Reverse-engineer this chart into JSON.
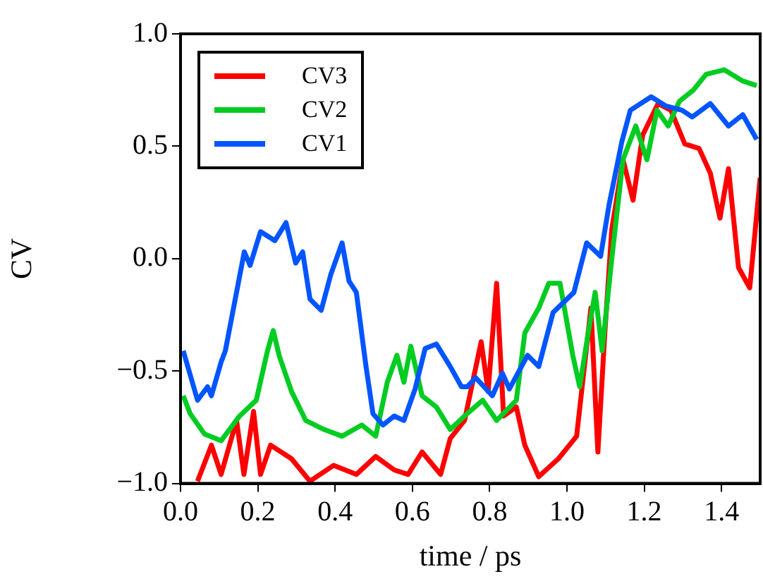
{
  "chart_data": {
    "type": "line",
    "xlabel": "time / ps",
    "ylabel": "CV",
    "xlim": [
      0,
      1.5
    ],
    "ylim": [
      -1,
      1
    ],
    "xticks": [
      {
        "value": 0,
        "label": "0.0"
      },
      {
        "value": 0.2,
        "label": "0.2"
      },
      {
        "value": 0.4,
        "label": "0.4"
      },
      {
        "value": 0.6,
        "label": "0.6"
      },
      {
        "value": 0.8,
        "label": "0.8"
      },
      {
        "value": 1,
        "label": "1.0"
      },
      {
        "value": 1.2,
        "label": "1.2"
      },
      {
        "value": 1.4,
        "label": "1.4"
      }
    ],
    "yticks": [
      {
        "value": -1,
        "label": "−1.0"
      },
      {
        "value": -0.5,
        "label": "−0.5"
      },
      {
        "value": 0,
        "label": "0.0"
      },
      {
        "value": 0.5,
        "label": "0.5"
      },
      {
        "value": 1,
        "label": "1.0"
      }
    ],
    "grid": false,
    "legend": "top left",
    "marker": "none",
    "line_style": "solid",
    "series": [
      {
        "name": "CV3",
        "color": "#ff0000",
        "x": [
          0.044,
          0.08,
          0.105,
          0.145,
          0.164,
          0.189,
          0.207,
          0.233,
          0.287,
          0.335,
          0.396,
          0.455,
          0.505,
          0.553,
          0.589,
          0.625,
          0.673,
          0.698,
          0.735,
          0.778,
          0.796,
          0.818,
          0.836,
          0.869,
          0.891,
          0.927,
          0.978,
          1.025,
          1.062,
          1.08,
          1.098,
          1.116,
          1.145,
          1.171,
          1.196,
          1.236,
          1.269,
          1.305,
          1.342,
          1.371,
          1.396,
          1.418,
          1.444,
          1.473,
          1.5
        ],
        "values": [
          -0.99,
          -0.83,
          -0.96,
          -0.72,
          -0.96,
          -0.68,
          -0.96,
          -0.83,
          -0.89,
          -0.99,
          -0.92,
          -0.96,
          -0.88,
          -0.94,
          -0.96,
          -0.86,
          -0.96,
          -0.8,
          -0.72,
          -0.37,
          -0.59,
          -0.11,
          -0.7,
          -0.66,
          -0.83,
          -0.97,
          -0.89,
          -0.79,
          -0.22,
          -0.86,
          -0.33,
          0.13,
          0.44,
          0.26,
          0.55,
          0.69,
          0.66,
          0.51,
          0.49,
          0.38,
          0.18,
          0.4,
          -0.04,
          -0.13,
          0.36
        ]
      },
      {
        "name": "CV2",
        "color": "#00cc22",
        "x": [
          0.007,
          0.025,
          0.062,
          0.105,
          0.153,
          0.196,
          0.225,
          0.24,
          0.255,
          0.287,
          0.324,
          0.371,
          0.418,
          0.469,
          0.505,
          0.535,
          0.56,
          0.578,
          0.596,
          0.625,
          0.662,
          0.698,
          0.735,
          0.782,
          0.818,
          0.869,
          0.891,
          0.927,
          0.953,
          0.982,
          1.015,
          1.033,
          1.055,
          1.073,
          1.091,
          1.116,
          1.145,
          1.178,
          1.207,
          1.233,
          1.262,
          1.291,
          1.327,
          1.36,
          1.407,
          1.455,
          1.491
        ],
        "values": [
          -0.61,
          -0.69,
          -0.78,
          -0.81,
          -0.7,
          -0.63,
          -0.41,
          -0.32,
          -0.43,
          -0.59,
          -0.72,
          -0.76,
          -0.79,
          -0.74,
          -0.79,
          -0.55,
          -0.43,
          -0.55,
          -0.39,
          -0.61,
          -0.66,
          -0.76,
          -0.7,
          -0.63,
          -0.72,
          -0.63,
          -0.33,
          -0.22,
          -0.11,
          -0.11,
          -0.43,
          -0.57,
          -0.33,
          -0.15,
          -0.41,
          0,
          0.44,
          0.59,
          0.44,
          0.66,
          0.59,
          0.7,
          0.75,
          0.82,
          0.84,
          0.79,
          0.77
        ]
      },
      {
        "name": "CV1",
        "color": "#0055ff",
        "x": [
          0.007,
          0.044,
          0.07,
          0.08,
          0.105,
          0.116,
          0.165,
          0.18,
          0.207,
          0.244,
          0.273,
          0.298,
          0.316,
          0.335,
          0.364,
          0.389,
          0.418,
          0.436,
          0.455,
          0.48,
          0.498,
          0.524,
          0.553,
          0.578,
          0.607,
          0.633,
          0.662,
          0.698,
          0.727,
          0.742,
          0.764,
          0.807,
          0.833,
          0.851,
          0.898,
          0.927,
          0.964,
          1.018,
          1.051,
          1.087,
          1.109,
          1.142,
          1.164,
          1.218,
          1.255,
          1.298,
          1.324,
          1.371,
          1.418,
          1.455,
          1.491
        ],
        "values": [
          -0.41,
          -0.63,
          -0.57,
          -0.61,
          -0.46,
          -0.41,
          0.03,
          -0.03,
          0.12,
          0.08,
          0.16,
          -0.02,
          0.03,
          -0.18,
          -0.23,
          -0.07,
          0.07,
          -0.1,
          -0.15,
          -0.48,
          -0.69,
          -0.74,
          -0.7,
          -0.72,
          -0.58,
          -0.4,
          -0.38,
          -0.48,
          -0.57,
          -0.57,
          -0.53,
          -0.61,
          -0.51,
          -0.58,
          -0.43,
          -0.48,
          -0.24,
          -0.15,
          0.07,
          0.01,
          0.24,
          0.52,
          0.66,
          0.72,
          0.68,
          0.66,
          0.63,
          0.69,
          0.59,
          0.64,
          0.53
        ]
      }
    ]
  }
}
